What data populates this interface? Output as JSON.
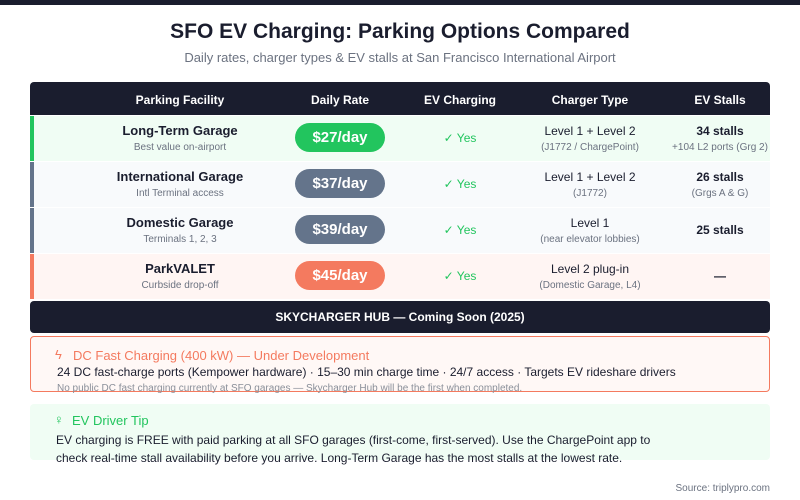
{
  "title": "SFO EV Charging: Parking Options Compared",
  "subtitle": "Daily rates, charger types & EV stalls at San Francisco International Airport",
  "headers": [
    "Parking Facility",
    "Daily Rate",
    "EV Charging",
    "Charger Type",
    "EV Stalls"
  ],
  "rows": [
    {
      "name": "Long-Term Garage",
      "sub": "Best value on-airport",
      "rate": "$27/day",
      "ev": "✓ Yes",
      "charger": "Level 1 + Level 2",
      "charger_sub": "(J1772 / ChargePoint)",
      "stalls": "34 stalls",
      "stalls_sub": "+104 L2 ports (Grg 2)",
      "accent": "#22c55e",
      "bg": "#f0fdf4",
      "pill": "#22c55e"
    },
    {
      "name": "International Garage",
      "sub": "Intl Terminal access",
      "rate": "$37/day",
      "ev": "✓ Yes",
      "charger": "Level 1 + Level 2",
      "charger_sub": "(J1772)",
      "stalls": "26 stalls",
      "stalls_sub": "(Grgs A & G)",
      "accent": "#64748b",
      "bg": "#f8fafc",
      "pill": "#64748b"
    },
    {
      "name": "Domestic Garage",
      "sub": "Terminals 1, 2, 3",
      "rate": "$39/day",
      "ev": "✓ Yes",
      "charger": "Level 1",
      "charger_sub": "(near elevator lobbies)",
      "stalls": "25 stalls",
      "stalls_sub": "",
      "accent": "#64748b",
      "bg": "#f8fafc",
      "pill": "#64748b"
    },
    {
      "name": "ParkVALET",
      "sub": "Curbside drop-off",
      "rate": "$45/day",
      "ev": "✓ Yes",
      "charger": "Level 2 plug-in",
      "charger_sub": "(Domestic Garage, L4)",
      "stalls": "—",
      "stalls_sub": "",
      "accent": "#f47a5f",
      "bg": "#fff5f3",
      "pill": "#f47a5f"
    }
  ],
  "hub": "SKYCHARGER HUB — Coming Soon (2025)",
  "dc": {
    "heading": "DC Fast Charging (400 kW) — Under Development",
    "body": "24 DC fast-charge ports (Kempower hardware) · 15–30 min charge time · 24/7 access · Targets EV rideshare drivers",
    "note": "No public DC fast charging currently at SFO garages — Skycharger Hub will be the first when completed."
  },
  "tip": {
    "heading": "EV Driver Tip",
    "body": "EV charging is FREE with paid parking at all SFO garages (first-come, first-served). Use the ChargePoint app to check real-time stall availability before you arrive. Long-Term Garage has the most stalls at the lowest rate."
  },
  "source": "Source: triplypro.com"
}
